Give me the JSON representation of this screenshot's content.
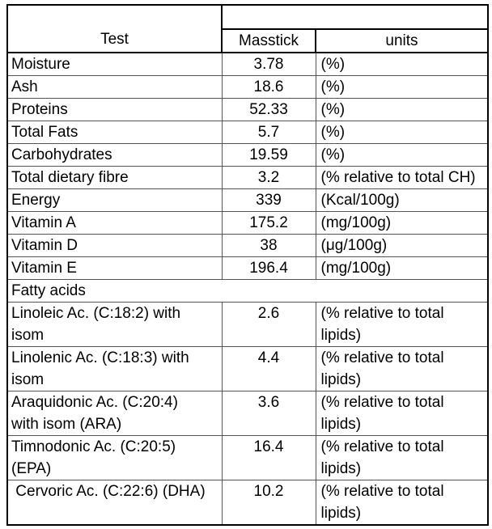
{
  "table": {
    "header": {
      "test_label": "Test",
      "masstick_label": "Masstick",
      "units_label": "units"
    },
    "rows": [
      {
        "test": "Moisture",
        "value": "3.78",
        "units": "(%)"
      },
      {
        "test": "Ash",
        "value": "18.6",
        "units": "(%)"
      },
      {
        "test": "Proteins",
        "value": "52.33",
        "units": "(%)"
      },
      {
        "test": "Total Fats",
        "value": "5.7",
        "units": "(%)"
      },
      {
        "test": "Carbohydrates",
        "value": "19.59",
        "units": "(%)"
      },
      {
        "test": "Total dietary fibre",
        "value": "3.2",
        "units": "(% relative to total CH)"
      },
      {
        "test": "Energy",
        "value": "339",
        "units": "(Kcal/100g)"
      },
      {
        "test": "Vitamin A",
        "value": "175.2",
        "units": "(mg/100g)"
      },
      {
        "test": "Vitamin D",
        "value": "38",
        "units": "(μg/100g)"
      },
      {
        "test": "Vitamin E",
        "value": "196.4",
        "units": "(mg/100g)"
      }
    ],
    "section_label": "Fatty acids",
    "fatty_rows": [
      {
        "test": "Linoleic Ac. (C:18:2) with\nisom",
        "value": "2.6",
        "units": "(% relative to total\nlipids)"
      },
      {
        "test": "Linolenic Ac. (C:18:3) with\nisom",
        "value": "4.4",
        "units": "(% relative to total\nlipids)"
      },
      {
        "test": "Araquidonic Ac. (C:20:4)\nwith isom (ARA)",
        "value": "3.6",
        "units": "(% relative to total\nlipids)"
      },
      {
        "test": "Timnodonic Ac. (C:20:5)\n(EPA)",
        "value": "16.4",
        "units": "(% relative to total\nlipids)"
      },
      {
        "test": " Cervoric Ac. (C:22:6) (DHA)",
        "value": "10.2",
        "units": "(% relative to total\nlipids)"
      }
    ]
  }
}
